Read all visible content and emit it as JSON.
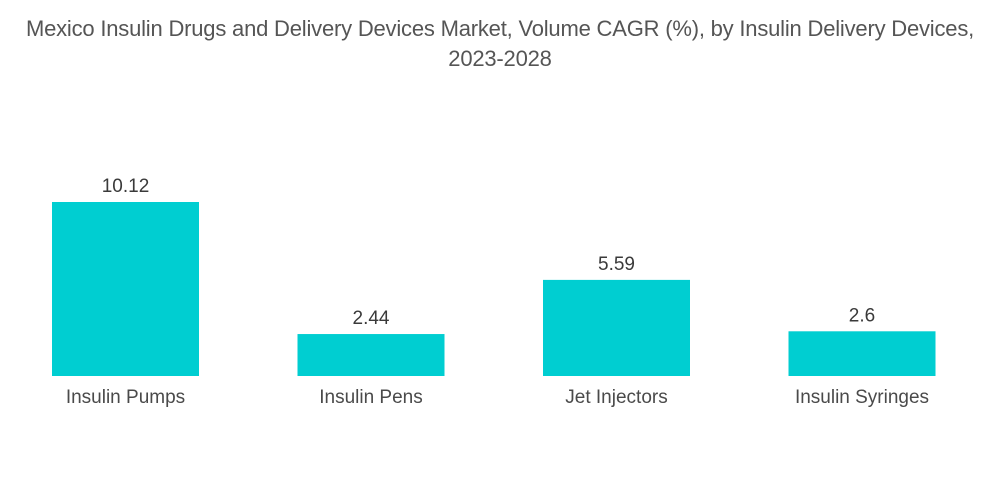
{
  "chart_data": {
    "type": "bar",
    "title": "Mexico Insulin Drugs and Delivery Devices Market, Volume CAGR (%), by Insulin Delivery Devices, 2023-2028",
    "categories": [
      "Insulin Pumps",
      "Insulin Pens",
      "Jet Injectors",
      "Insulin Syringes"
    ],
    "values": [
      10.12,
      2.44,
      5.59,
      2.6
    ],
    "value_labels": [
      "10.12",
      "2.44",
      "5.59",
      "2.6"
    ],
    "xlabel": "",
    "ylabel": "",
    "ylim": [
      0,
      10.12
    ],
    "grid": false,
    "legend": "none",
    "colors": {
      "bar": "#00CED1"
    }
  }
}
